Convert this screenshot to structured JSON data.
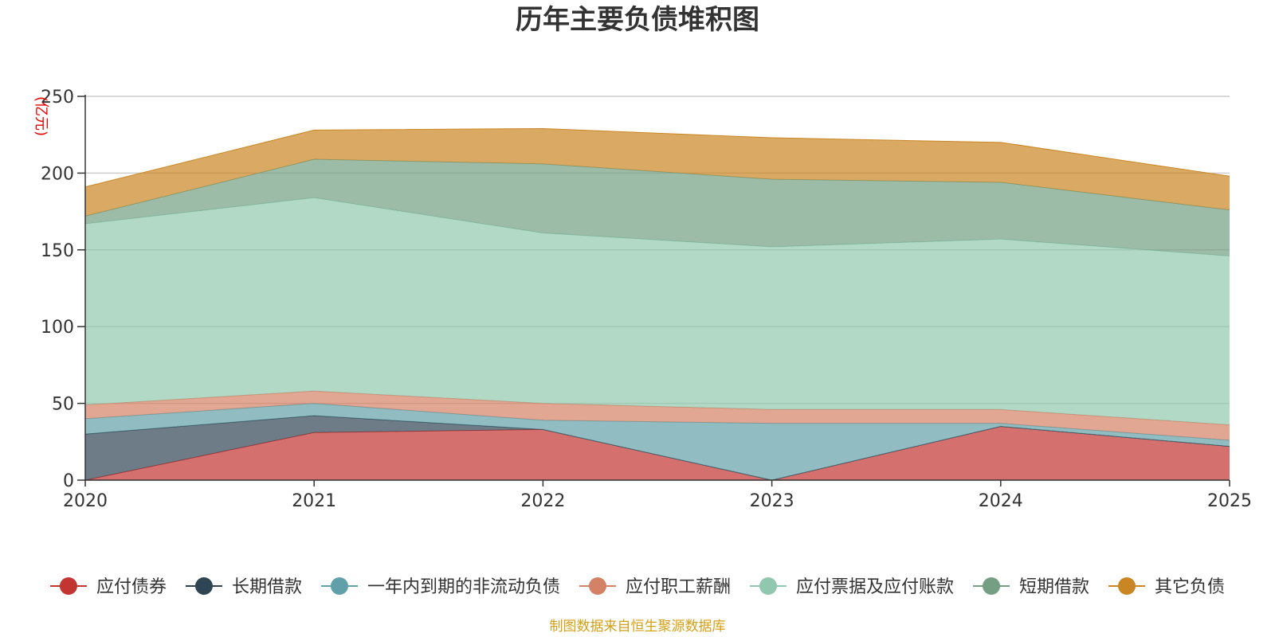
{
  "chart_data": {
    "type": "area",
    "stacked": true,
    "title": "历年主要负债堆积图",
    "ylabel": "(亿元)",
    "xlabel": "",
    "categories": [
      "2020",
      "2021",
      "2022",
      "2023",
      "2024",
      "2025"
    ],
    "ylim": [
      0,
      250
    ],
    "yticks": [
      0,
      50,
      100,
      150,
      200,
      250
    ],
    "grid": true,
    "legend_position": "bottom",
    "series": [
      {
        "name": "应付债券",
        "color": "#c23531",
        "values": [
          0,
          31,
          33,
          0,
          35,
          22
        ]
      },
      {
        "name": "长期借款",
        "color": "#2f4554",
        "values": [
          30,
          11,
          0,
          0,
          0,
          0
        ]
      },
      {
        "name": "一年内到期的非流动负债",
        "color": "#61a0a8",
        "values": [
          10,
          8,
          6,
          37,
          2,
          4
        ]
      },
      {
        "name": "应付职工薪酬",
        "color": "#d48265",
        "values": [
          9,
          8,
          11,
          9,
          9,
          10
        ]
      },
      {
        "name": "应付票据及应付账款",
        "color": "#91c7ae",
        "values": [
          118,
          126,
          111,
          106,
          111,
          110
        ]
      },
      {
        "name": "短期借款",
        "color": "#749f83",
        "values": [
          5,
          25,
          45,
          44,
          37,
          30
        ]
      },
      {
        "name": "其它负债",
        "color": "#ca8622",
        "values": [
          19,
          19,
          23,
          27,
          26,
          22
        ]
      }
    ]
  },
  "source_note": "制图数据来自恒生聚源数据库"
}
